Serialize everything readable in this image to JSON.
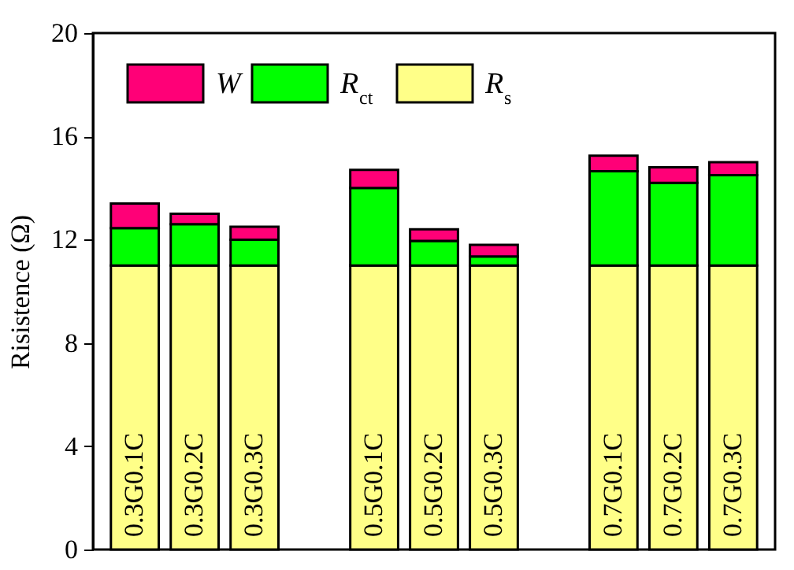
{
  "chart_data": {
    "type": "bar",
    "stacked": true,
    "ylabel": "Risistence (Ω)",
    "categories": [
      "0.3G0.1C",
      "0.3G0.2C",
      "0.3G0.3C",
      null,
      "0.5G0.1C",
      "0.5G0.2C",
      "0.5G0.3C",
      null,
      "0.7G0.1C",
      "0.7G0.2C",
      "0.7G0.3C"
    ],
    "series": [
      {
        "name": "R$_{s}$",
        "color": "#ffff88",
        "values": [
          11,
          11,
          11,
          null,
          11,
          11,
          11,
          null,
          11,
          11,
          11
        ]
      },
      {
        "name": "R$_{ct}$",
        "color": "#00ff00",
        "values": [
          1.45,
          1.6,
          1.0,
          null,
          3.0,
          0.95,
          0.35,
          null,
          3.65,
          3.2,
          3.5
        ]
      },
      {
        "name": "W",
        "color": "#ff0077",
        "values": [
          0.95,
          0.4,
          0.5,
          null,
          0.7,
          0.45,
          0.45,
          null,
          0.6,
          0.6,
          0.5
        ]
      }
    ],
    "ylim": [
      0,
      20
    ],
    "yticks": [
      0,
      4,
      8,
      12,
      16,
      20
    ],
    "legend": "top left"
  }
}
